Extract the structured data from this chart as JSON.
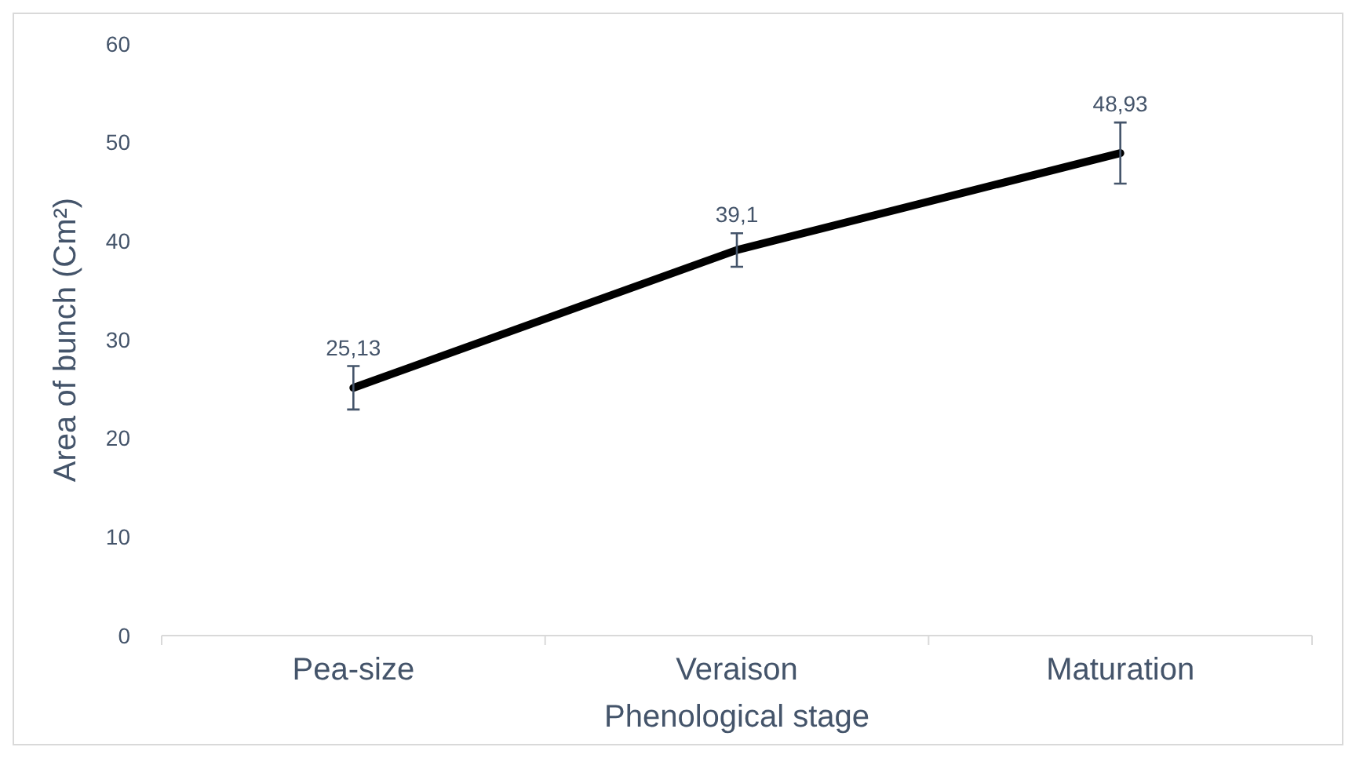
{
  "chart_data": {
    "type": "line",
    "xlabel": "Phenological stage",
    "ylabel": "Area of bunch (Cm²)",
    "categories": [
      "Pea-size",
      "Veraison",
      "Maturation"
    ],
    "series": [
      {
        "color": "#000000",
        "values": [
          25.13,
          39.1,
          48.93
        ],
        "errors": [
          2.2,
          1.7,
          3.1
        ],
        "value_labels": [
          "25,13",
          "39,1",
          "48,93"
        ]
      }
    ],
    "ylim": [
      0,
      60
    ],
    "yticks": [
      0,
      10,
      20,
      30,
      40,
      50,
      60
    ],
    "grid": false,
    "marker": "none",
    "line_style": "solid"
  }
}
